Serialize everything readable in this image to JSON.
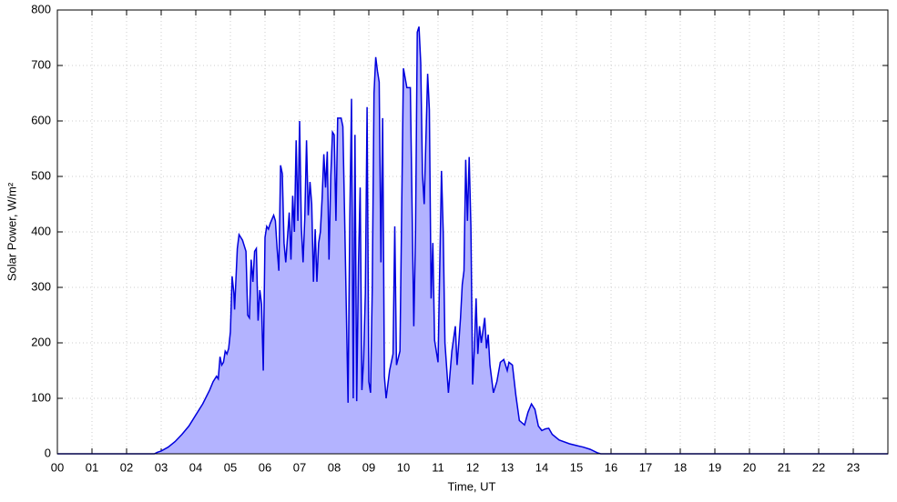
{
  "chart_data": {
    "type": "area",
    "xlabel": "Time, UT",
    "ylabel": "Solar Power, W/m²",
    "color": "#0000dd",
    "fill": "#b3b3ff",
    "grid": true,
    "xlim": [
      0,
      24
    ],
    "ylim": [
      0,
      800
    ],
    "xticks": [
      {
        "value": 0,
        "label": "00"
      },
      {
        "value": 1,
        "label": "01"
      },
      {
        "value": 2,
        "label": "02"
      },
      {
        "value": 3,
        "label": "03"
      },
      {
        "value": 4,
        "label": "04"
      },
      {
        "value": 5,
        "label": "05"
      },
      {
        "value": 6,
        "label": "06"
      },
      {
        "value": 7,
        "label": "07"
      },
      {
        "value": 8,
        "label": "08"
      },
      {
        "value": 9,
        "label": "09"
      },
      10,
      11,
      12,
      13,
      14,
      15,
      16,
      17,
      18,
      19,
      20,
      21,
      22,
      23
    ],
    "yticks": [
      0,
      100,
      200,
      300,
      400,
      500,
      600,
      700,
      800
    ],
    "x": [
      0,
      2.8,
      2.9,
      3.0,
      3.2,
      3.4,
      3.6,
      3.8,
      4.0,
      4.2,
      4.4,
      4.5,
      4.6,
      4.65,
      4.7,
      4.75,
      4.8,
      4.85,
      4.9,
      4.95,
      5.0,
      5.05,
      5.1,
      5.12,
      5.2,
      5.25,
      5.35,
      5.45,
      5.5,
      5.55,
      5.6,
      5.65,
      5.7,
      5.75,
      5.8,
      5.85,
      5.9,
      5.95,
      6.0,
      6.05,
      6.1,
      6.15,
      6.25,
      6.3,
      6.35,
      6.4,
      6.45,
      6.5,
      6.55,
      6.6,
      6.7,
      6.75,
      6.8,
      6.85,
      6.9,
      6.95,
      7.0,
      7.05,
      7.1,
      7.15,
      7.2,
      7.25,
      7.3,
      7.35,
      7.4,
      7.45,
      7.5,
      7.55,
      7.6,
      7.65,
      7.7,
      7.75,
      7.8,
      7.85,
      7.9,
      7.95,
      8.0,
      8.05,
      8.1,
      8.2,
      8.25,
      8.3,
      8.4,
      8.45,
      8.5,
      8.55,
      8.6,
      8.65,
      8.7,
      8.75,
      8.8,
      8.85,
      8.9,
      8.95,
      9.0,
      9.05,
      9.1,
      9.15,
      9.2,
      9.25,
      9.3,
      9.35,
      9.4,
      9.45,
      9.5,
      9.6,
      9.7,
      9.75,
      9.8,
      9.9,
      10.0,
      10.1,
      10.2,
      10.3,
      10.35,
      10.4,
      10.45,
      10.5,
      10.55,
      10.6,
      10.7,
      10.75,
      10.8,
      10.85,
      10.9,
      11.0,
      11.1,
      11.15,
      11.2,
      11.3,
      11.4,
      11.5,
      11.55,
      11.6,
      11.65,
      11.7,
      11.75,
      11.8,
      11.85,
      11.9,
      11.95,
      12.0,
      12.05,
      12.1,
      12.15,
      12.2,
      12.25,
      12.35,
      12.4,
      12.45,
      12.5,
      12.6,
      12.7,
      12.8,
      12.9,
      13.0,
      13.05,
      13.15,
      13.25,
      13.35,
      13.5,
      13.6,
      13.7,
      13.8,
      13.9,
      14.0,
      14.1,
      14.2,
      14.3,
      14.5,
      14.8,
      15.0,
      15.2,
      15.4,
      15.6,
      15.7,
      24
    ],
    "values": [
      0,
      0,
      3,
      5,
      12,
      22,
      35,
      50,
      70,
      90,
      115,
      130,
      140,
      135,
      175,
      160,
      165,
      185,
      180,
      190,
      220,
      320,
      290,
      260,
      370,
      395,
      385,
      365,
      250,
      245,
      350,
      310,
      365,
      370,
      240,
      295,
      270,
      150,
      390,
      410,
      405,
      415,
      430,
      420,
      370,
      330,
      520,
      505,
      380,
      345,
      435,
      350,
      465,
      400,
      565,
      420,
      600,
      410,
      345,
      425,
      565,
      430,
      490,
      450,
      310,
      405,
      310,
      380,
      400,
      460,
      540,
      480,
      545,
      350,
      500,
      580,
      575,
      420,
      605,
      605,
      590,
      430,
      92,
      420,
      640,
      100,
      575,
      95,
      340,
      480,
      115,
      170,
      290,
      625,
      130,
      110,
      300,
      650,
      715,
      690,
      670,
      345,
      605,
      140,
      100,
      150,
      180,
      410,
      160,
      185,
      695,
      660,
      660,
      230,
      400,
      760,
      770,
      705,
      505,
      450,
      685,
      620,
      280,
      380,
      205,
      165,
      510,
      400,
      200,
      110,
      185,
      230,
      160,
      200,
      245,
      305,
      330,
      530,
      420,
      535,
      410,
      125,
      190,
      280,
      180,
      230,
      200,
      245,
      190,
      215,
      160,
      110,
      130,
      165,
      170,
      150,
      165,
      160,
      105,
      60,
      52,
      75,
      90,
      80,
      50,
      42,
      45,
      46,
      35,
      25,
      18,
      15,
      12,
      8,
      2,
      0,
      0
    ]
  }
}
